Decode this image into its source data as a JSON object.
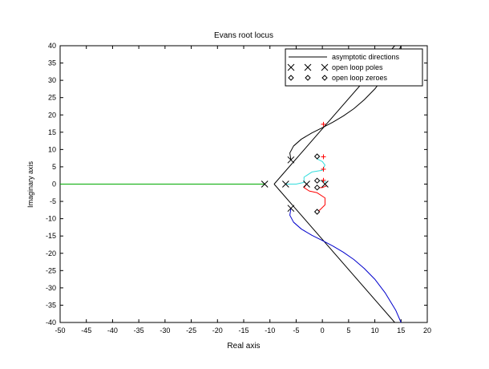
{
  "chart_data": {
    "type": "line",
    "title": "Evans root locus",
    "xlabel": "Real axis",
    "ylabel": "Imaginary axis",
    "xlim": [
      -50,
      20
    ],
    "ylim": [
      -40,
      40
    ],
    "xticks": [
      -50,
      -45,
      -40,
      -35,
      -30,
      -25,
      -20,
      -15,
      -10,
      -5,
      0,
      5,
      10,
      15,
      20
    ],
    "yticks": [
      -40,
      -35,
      -30,
      -25,
      -20,
      -15,
      -10,
      -5,
      0,
      5,
      10,
      15,
      20,
      25,
      30,
      35,
      40
    ],
    "grid": false,
    "legend_position": "top-right",
    "legend": [
      {
        "label": "asymptotic directions",
        "marker": "line"
      },
      {
        "label": "open loop poles",
        "marker": "x"
      },
      {
        "label": "open loop zeroes",
        "marker": "diamond"
      }
    ],
    "asymptotes": [
      {
        "points": [
          [
            -9.2,
            0
          ],
          [
            13.8,
            40
          ]
        ]
      },
      {
        "points": [
          [
            -9.2,
            0
          ],
          [
            13.8,
            -40
          ]
        ]
      }
    ],
    "open_loop_poles": [
      [
        -11,
        0
      ],
      [
        -7,
        0
      ],
      [
        -3,
        0
      ],
      [
        0.5,
        0
      ],
      [
        -6,
        7
      ],
      [
        -6,
        -7
      ]
    ],
    "open_loop_zeroes": [
      [
        -1,
        8
      ],
      [
        -1,
        1
      ],
      [
        -1,
        -1
      ],
      [
        -1,
        -8
      ]
    ],
    "crossing_points": [
      [
        0.2,
        17.3
      ],
      [
        0.2,
        7.9
      ],
      [
        0.2,
        4.3
      ],
      [
        0.2,
        1.1
      ]
    ],
    "colors": {
      "axes": "#000000",
      "asymptote": "#000000",
      "black_branch": "#000000",
      "blue_branch": "#0000cc",
      "green_branch": "#00aa00",
      "cyan_branch": "#33dddd",
      "red_branch": "#ff0000",
      "crossing_marker": "#ff0000"
    },
    "series": [
      {
        "color": "black_branch",
        "points": [
          [
            -6,
            7
          ],
          [
            -6.2,
            9
          ],
          [
            -5.5,
            11
          ],
          [
            -4,
            13
          ],
          [
            -2,
            14.8
          ],
          [
            0,
            16.3
          ],
          [
            2,
            17.9
          ],
          [
            4,
            19.7
          ],
          [
            6,
            21.8
          ],
          [
            8,
            24.4
          ],
          [
            10,
            27.5
          ],
          [
            12,
            31.5
          ],
          [
            14,
            36.5
          ],
          [
            15,
            40
          ]
        ]
      },
      {
        "color": "blue_branch",
        "points": [
          [
            -6,
            -7
          ],
          [
            -6.2,
            -9
          ],
          [
            -5.5,
            -11
          ],
          [
            -4,
            -13
          ],
          [
            -2,
            -14.8
          ],
          [
            0,
            -16.3
          ],
          [
            2,
            -17.9
          ],
          [
            4,
            -19.7
          ],
          [
            6,
            -21.8
          ],
          [
            8,
            -24.4
          ],
          [
            10,
            -27.5
          ],
          [
            12,
            -31.5
          ],
          [
            14,
            -36.5
          ],
          [
            15,
            -40
          ]
        ]
      },
      {
        "color": "green_branch",
        "points": [
          [
            -11,
            0
          ],
          [
            -50,
            0
          ]
        ]
      },
      {
        "color": "cyan_branch",
        "points": [
          [
            -7,
            0
          ],
          [
            -5,
            0
          ],
          [
            -3.5,
            0.5
          ],
          [
            -3.5,
            2
          ],
          [
            -2,
            3.5
          ],
          [
            0,
            4
          ],
          [
            0.5,
            5.5
          ],
          [
            0,
            6.5
          ],
          [
            -1,
            7.3
          ],
          [
            -1,
            8
          ]
        ]
      },
      {
        "color": "red_branch",
        "points": [
          [
            -3,
            0
          ],
          [
            -3.5,
            -1
          ],
          [
            -2.5,
            -2
          ],
          [
            -1,
            -2.5
          ],
          [
            0.5,
            -4
          ],
          [
            0.5,
            -6
          ],
          [
            -0.5,
            -7.5
          ],
          [
            -1,
            -8
          ]
        ]
      },
      {
        "color": "cyan_branch",
        "points": [
          [
            0.5,
            0
          ],
          [
            0.8,
            0.5
          ],
          [
            0,
            1
          ],
          [
            -1,
            1
          ]
        ]
      },
      {
        "color": "red_branch",
        "points": [
          [
            0.5,
            0
          ],
          [
            0.8,
            -0.5
          ],
          [
            0,
            -1
          ],
          [
            -1,
            -1
          ]
        ]
      }
    ]
  }
}
